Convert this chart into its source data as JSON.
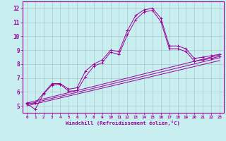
{
  "xlabel": "Windchill (Refroidissement éolien,°C)",
  "background_color": "#c8eef0",
  "grid_color": "#aac8cc",
  "line_color": "#990099",
  "xlim": [
    -0.5,
    23.5
  ],
  "ylim": [
    4.5,
    12.5
  ],
  "xticks": [
    0,
    1,
    2,
    3,
    4,
    5,
    6,
    7,
    8,
    9,
    10,
    11,
    12,
    13,
    14,
    15,
    16,
    17,
    18,
    19,
    20,
    21,
    22,
    23
  ],
  "yticks": [
    5,
    6,
    7,
    8,
    9,
    10,
    11,
    12
  ],
  "series": [
    {
      "x": [
        0,
        1,
        2,
        3,
        4,
        5,
        6,
        7,
        8,
        9,
        10,
        11,
        12,
        13,
        14,
        15,
        16,
        17,
        18,
        19,
        20,
        21,
        22,
        23
      ],
      "y": [
        5.2,
        5.2,
        5.9,
        6.6,
        6.6,
        6.2,
        6.3,
        7.5,
        8.0,
        8.3,
        9.0,
        8.9,
        10.4,
        11.5,
        11.9,
        12.0,
        11.3,
        9.3,
        9.3,
        9.1,
        8.4,
        8.5,
        8.6,
        8.7
      ],
      "marker": "+"
    },
    {
      "x": [
        0,
        1,
        2,
        3,
        4,
        5,
        6,
        7,
        8,
        9,
        10,
        11,
        12,
        13,
        14,
        15,
        16,
        17,
        18,
        19,
        20,
        21,
        22,
        23
      ],
      "y": [
        5.15,
        4.75,
        5.85,
        6.5,
        6.55,
        6.05,
        6.1,
        7.1,
        7.85,
        8.1,
        8.85,
        8.7,
        10.1,
        11.2,
        11.75,
        11.85,
        11.05,
        9.1,
        9.1,
        8.9,
        8.2,
        8.3,
        8.4,
        8.55
      ],
      "marker": "+"
    },
    {
      "x": [
        0,
        23
      ],
      "y": [
        5.2,
        8.65
      ],
      "marker": null
    },
    {
      "x": [
        0,
        23
      ],
      "y": [
        5.1,
        8.45
      ],
      "marker": null
    },
    {
      "x": [
        0,
        23
      ],
      "y": [
        5.0,
        8.25
      ],
      "marker": null
    }
  ]
}
